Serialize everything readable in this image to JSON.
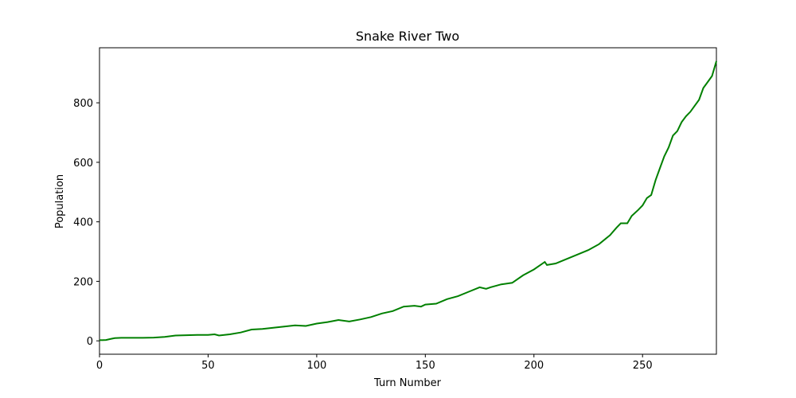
{
  "chart_data": {
    "type": "line",
    "title": "Snake River Two",
    "xlabel": "Turn Number",
    "ylabel": "Population",
    "xlim": [
      0,
      284
    ],
    "ylim": [
      -45,
      985
    ],
    "xticks": [
      0,
      50,
      100,
      150,
      200,
      250
    ],
    "yticks": [
      0,
      200,
      400,
      600,
      800
    ],
    "grid": false,
    "line_color": "#008000",
    "series": [
      {
        "x": [
          0,
          3,
          5,
          7,
          10,
          15,
          20,
          25,
          30,
          35,
          40,
          45,
          50,
          53,
          55,
          60,
          65,
          70,
          75,
          80,
          85,
          90,
          95,
          100,
          105,
          110,
          115,
          120,
          125,
          130,
          135,
          140,
          145,
          148,
          150,
          155,
          160,
          165,
          170,
          175,
          178,
          180,
          185,
          190,
          195,
          200,
          205,
          206,
          210,
          215,
          220,
          225,
          230,
          235,
          238,
          240,
          243,
          245,
          248,
          250,
          252,
          254,
          256,
          258,
          260,
          262,
          264,
          266,
          268,
          270,
          272,
          274,
          276,
          278,
          280,
          282,
          284
        ],
        "y": [
          2,
          3,
          6,
          9,
          10,
          10,
          10,
          11,
          13,
          18,
          19,
          20,
          20,
          22,
          18,
          22,
          28,
          38,
          40,
          44,
          48,
          52,
          50,
          58,
          63,
          70,
          65,
          72,
          80,
          92,
          100,
          115,
          118,
          115,
          122,
          125,
          140,
          150,
          165,
          180,
          175,
          180,
          190,
          195,
          220,
          240,
          265,
          255,
          260,
          275,
          290,
          305,
          325,
          355,
          380,
          395,
          395,
          420,
          440,
          455,
          480,
          490,
          540,
          580,
          620,
          650,
          690,
          705,
          735,
          755,
          770,
          790,
          810,
          850,
          870,
          890,
          940
        ]
      }
    ]
  }
}
